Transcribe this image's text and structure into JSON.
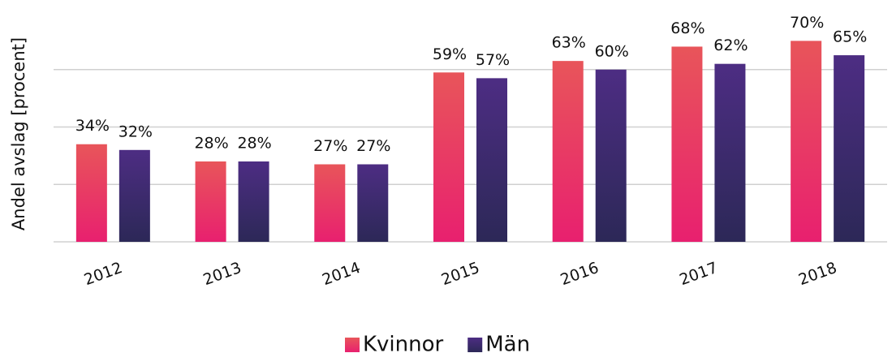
{
  "chart_data": {
    "type": "bar",
    "y_label": "Andel avslag [procent]",
    "categories": [
      "2012",
      "2013",
      "2014",
      "2015",
      "2016",
      "2017",
      "2018"
    ],
    "series": [
      {
        "name": "Kvinnor",
        "color": "#e8555a",
        "color_end": "#e8206f",
        "values": [
          34,
          28,
          27,
          59,
          63,
          68,
          70
        ],
        "value_labels": [
          "34%",
          "28%",
          "27%",
          "59%",
          "63%",
          "68%",
          "70%"
        ]
      },
      {
        "name": "Män",
        "color": "#4d2d83",
        "color_end": "#2c2857",
        "values": [
          32,
          28,
          27,
          57,
          60,
          62,
          65
        ],
        "value_labels": [
          "32%",
          "28%",
          "27%",
          "57%",
          "60%",
          "62%",
          "65%"
        ]
      }
    ],
    "ylim": [
      0,
      80
    ],
    "yticks": [
      0,
      20,
      40,
      60
    ],
    "grid": true,
    "legend": "bottom"
  }
}
